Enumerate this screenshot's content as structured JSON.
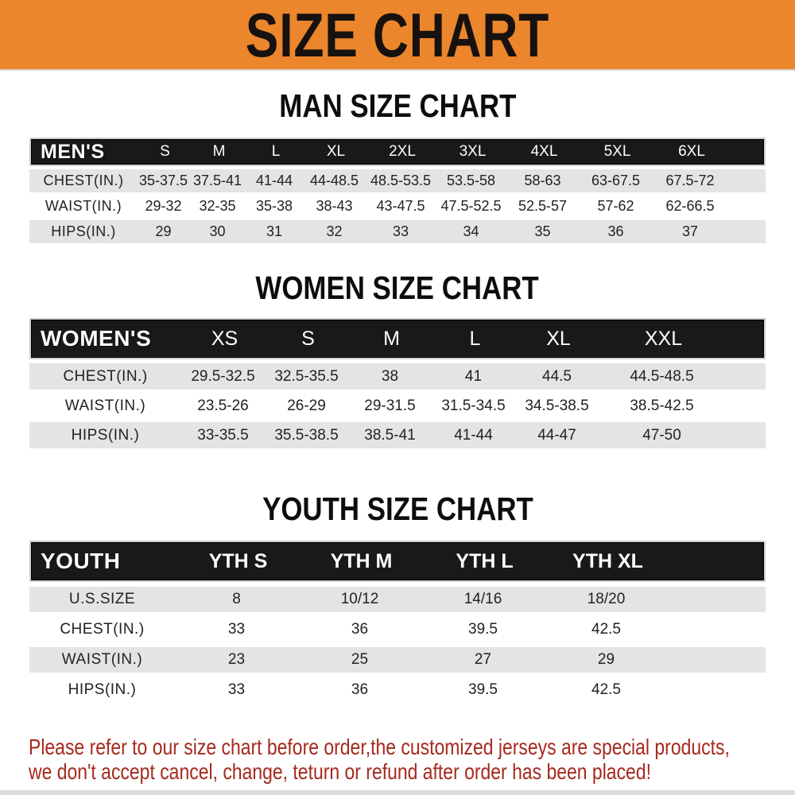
{
  "banner": {
    "title": "SIZE CHART"
  },
  "colors": {
    "banner_bg": "#EC862C",
    "header_bar": "#1B181B",
    "row_stripe": "#E4E4E4",
    "footer_text": "#A6291E"
  },
  "sections": [
    {
      "id": "men",
      "heading": "MAN SIZE CHART",
      "table": {
        "label": "MEN'S",
        "columns": [
          "S",
          "M",
          "L",
          "XL",
          "2XL",
          "3XL",
          "4XL",
          "5XL",
          "6XL"
        ],
        "rows": [
          {
            "label": "CHEST(IN.)",
            "values": [
              "35-37.5",
              "37.5-41",
              "41-44",
              "44-48.5",
              "48.5-53.5",
              "53.5-58",
              "58-63",
              "63-67.5",
              "67.5-72"
            ]
          },
          {
            "label": "WAIST(IN.)",
            "values": [
              "29-32",
              "32-35",
              "35-38",
              "38-43",
              "43-47.5",
              "47.5-52.5",
              "52.5-57",
              "57-62",
              "62-66.5"
            ]
          },
          {
            "label": "HIPS(IN.)",
            "values": [
              "29",
              "30",
              "31",
              "32",
              "33",
              "34",
              "35",
              "36",
              "37"
            ]
          }
        ]
      }
    },
    {
      "id": "women",
      "heading": "WOMEN SIZE CHART",
      "table": {
        "label": "WOMEN'S",
        "columns": [
          "XS",
          "S",
          "M",
          "L",
          "XL",
          "XXL"
        ],
        "rows": [
          {
            "label": "CHEST(IN.)",
            "values": [
              "29.5-32.5",
              "32.5-35.5",
              "38",
              "41",
              "44.5",
              "44.5-48.5"
            ]
          },
          {
            "label": "WAIST(IN.)",
            "values": [
              "23.5-26",
              "26-29",
              "29-31.5",
              "31.5-34.5",
              "34.5-38.5",
              "38.5-42.5"
            ]
          },
          {
            "label": "HIPS(IN.)",
            "values": [
              "33-35.5",
              "35.5-38.5",
              "38.5-41",
              "41-44",
              "44-47",
              "47-50"
            ]
          }
        ]
      }
    },
    {
      "id": "youth",
      "heading": "YOUTH SIZE CHART",
      "table": {
        "label": "YOUTH",
        "columns": [
          "YTH S",
          "YTH M",
          "YTH L",
          "YTH XL"
        ],
        "rows": [
          {
            "label": "U.S.SIZE",
            "values": [
              "8",
              "10/12",
              "14/16",
              "18/20"
            ]
          },
          {
            "label": "CHEST(IN.)",
            "values": [
              "33",
              "36",
              "39.5",
              "42.5"
            ]
          },
          {
            "label": "WAIST(IN.)",
            "values": [
              "23",
              "25",
              "27",
              "29"
            ]
          },
          {
            "label": "HIPS(IN.)",
            "values": [
              "33",
              "36",
              "39.5",
              "42.5"
            ]
          }
        ]
      }
    }
  ],
  "footer": {
    "line1": "Please refer to our size chart before order,the customized jerseys are special products,",
    "line2": "we don't accept cancel, change, teturn or refund after order has been placed!"
  }
}
